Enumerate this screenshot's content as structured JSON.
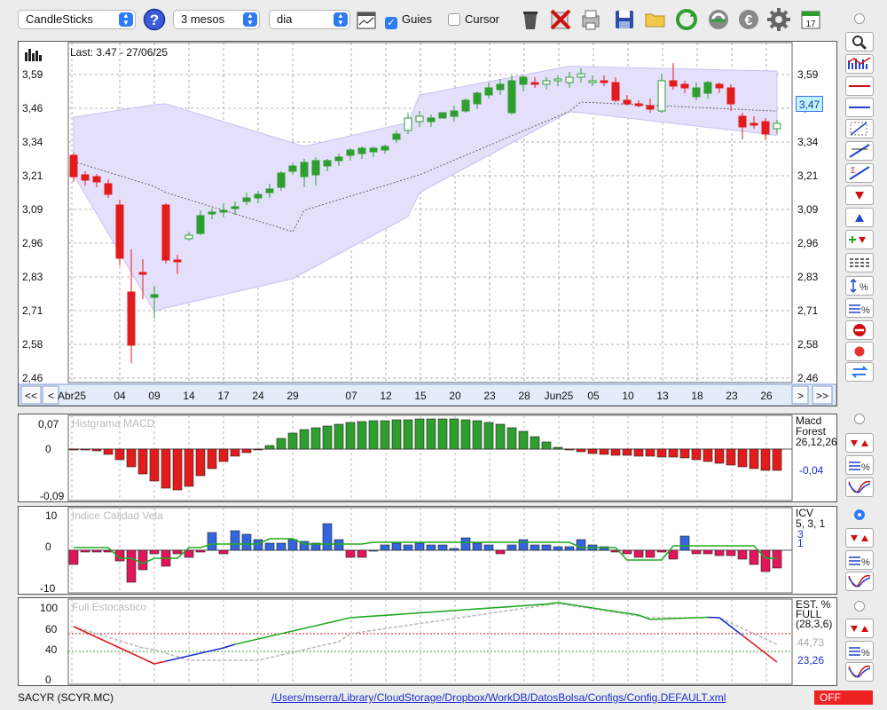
{
  "toolbar": {
    "chart_type": "CandleSticks",
    "period": "3 mesos",
    "interval": "dia",
    "guides_label": "Guies",
    "guides_checked": true,
    "cursor_label": "Cursor",
    "cursor_checked": false,
    "calendar_day": "17"
  },
  "price_chart": {
    "last_label": "Last: 3.47 - 27/06/25",
    "y_ticks": [
      "3,59",
      "3,46",
      "3,34",
      "3,21",
      "3,09",
      "2,96",
      "2,83",
      "2,71",
      "2,58",
      "2,46"
    ],
    "current_value": "3,47",
    "x_labels": [
      "Abr25",
      "04",
      "09",
      "14",
      "17",
      "24",
      "29",
      "07",
      "12",
      "15",
      "20",
      "23",
      "28",
      "Jun25",
      "05",
      "10",
      "13",
      "18",
      "23",
      "26"
    ],
    "nav": {
      "first": "<<",
      "prev": "<",
      "next": ">",
      "last": ">>"
    }
  },
  "macd_panel": {
    "title": "Histgrama MACD",
    "y_ticks": [
      "0,07",
      "0",
      "-0,09"
    ],
    "side_label_1": "Macd",
    "side_label_2": "Forest",
    "side_params": "26,12,26",
    "side_value": "-0,04"
  },
  "icv_panel": {
    "title": "Indice Calidad Vela",
    "y_ticks": [
      "10",
      "0",
      "-10"
    ],
    "side_label": "ICV",
    "side_params": "5, 3, 1",
    "side_value_1": "3",
    "side_value_2": "1"
  },
  "stoch_panel": {
    "title": "Full Estocastico",
    "y_ticks": [
      "100",
      "60",
      "40",
      "0"
    ],
    "side_label_1": "EST. %",
    "side_label_2": "FULL",
    "side_params": "(28,3,6)",
    "side_value_1": "44,73",
    "side_value_2": "23,26"
  },
  "status": {
    "ticker": "SACYR (SCYR.MC)",
    "config_path": "/Users/mserra/Library/CloudStorage/Dropbox/WorkDB/DatosBolsa/Configs/Config.DEFAULT.xml",
    "off_label": "OFF"
  },
  "colors": {
    "up": "#2e9e2e",
    "down": "#e21c1c",
    "band": "#e4e0fb",
    "accent": "#2f7bf5",
    "off": "#ee2222"
  }
}
